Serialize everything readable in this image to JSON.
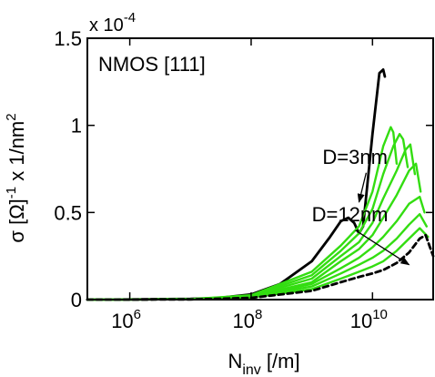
{
  "chart_data": {
    "type": "line",
    "title": "",
    "panel_label": "NMOS [111]",
    "xlabel": {
      "main": "N",
      "sub": "inv",
      "unit": " [/m]"
    },
    "ylabel": {
      "pre": "σ [Ω]",
      "sup1": "-1",
      "mid": " x 1/nm",
      "sup2": "2"
    },
    "y_exponent": {
      "base": "x 10",
      "power": "-4"
    },
    "x_scale": "log",
    "xlim": [
      200000,
      100000000000
    ],
    "ylim": [
      0,
      1.5
    ],
    "x_ticks": [
      {
        "value": 1000000,
        "base": "10",
        "exp": "6"
      },
      {
        "value": 100000000,
        "base": "10",
        "exp": "8"
      },
      {
        "value": 10000000000,
        "base": "10",
        "exp": "10"
      }
    ],
    "y_ticks": [
      {
        "value": 0,
        "label": "0"
      },
      {
        "value": 0.5,
        "label": "0.5"
      },
      {
        "value": 1,
        "label": "1"
      },
      {
        "value": 1.5,
        "label": "1.5"
      }
    ],
    "grid": false,
    "colors": {
      "d3": "#000000",
      "intermediate": "#33dd11",
      "d12": "#000000",
      "axes": "#000000"
    },
    "series": [
      {
        "style": "solid-black",
        "x": [
          200000,
          1000000,
          10000000,
          30000000,
          100000000,
          300000000,
          1000000000,
          2000000000,
          3000000000,
          4000000000,
          5000000000,
          6000000000,
          7000000000,
          8000000000,
          10000000000,
          13000000000,
          15000000000,
          16000000000
        ],
        "y": [
          0.0,
          0.001,
          0.004,
          0.01,
          0.03,
          0.09,
          0.22,
          0.36,
          0.45,
          0.47,
          0.44,
          0.38,
          0.42,
          0.62,
          0.95,
          1.3,
          1.32,
          1.28
        ]
      },
      {
        "style": "solid-green",
        "x": [
          200000,
          1000000,
          10000000,
          100000000,
          1000000000,
          3000000000,
          6000000000,
          10000000000,
          15000000000,
          20000000000,
          22000000000,
          25000000000
        ],
        "y": [
          0.0,
          0.001,
          0.003,
          0.025,
          0.16,
          0.31,
          0.42,
          0.62,
          0.88,
          0.99,
          0.96,
          0.78
        ]
      },
      {
        "style": "solid-green",
        "x": [
          200000,
          1000000,
          10000000,
          100000000,
          1000000000,
          3000000000,
          6000000000,
          10000000000,
          15000000000,
          22000000000,
          28000000000,
          32000000000,
          38000000000
        ],
        "y": [
          0.0,
          0.001,
          0.003,
          0.022,
          0.14,
          0.28,
          0.38,
          0.52,
          0.72,
          0.88,
          0.95,
          0.92,
          0.76
        ]
      },
      {
        "style": "solid-green",
        "x": [
          200000,
          1000000,
          10000000,
          100000000,
          1000000000,
          3000000000,
          6000000000,
          10000000000,
          15000000000,
          25000000000,
          35000000000,
          42000000000,
          50000000000
        ],
        "y": [
          0.0,
          0.001,
          0.003,
          0.02,
          0.12,
          0.25,
          0.33,
          0.44,
          0.58,
          0.74,
          0.86,
          0.89,
          0.72
        ]
      },
      {
        "style": "solid-green",
        "x": [
          200000,
          1000000,
          10000000,
          100000000,
          1000000000,
          3000000000,
          6000000000,
          10000000000,
          15000000000,
          25000000000,
          40000000000,
          52000000000,
          62000000000
        ],
        "y": [
          0.0,
          0.001,
          0.002,
          0.018,
          0.1,
          0.22,
          0.29,
          0.37,
          0.47,
          0.6,
          0.74,
          0.78,
          0.62
        ]
      },
      {
        "style": "solid-green",
        "x": [
          200000,
          1000000,
          10000000,
          100000000,
          1000000000,
          3000000000,
          6000000000,
          10000000000,
          15000000000,
          25000000000,
          40000000000,
          60000000000,
          72000000000
        ],
        "y": [
          0.0,
          0.001,
          0.002,
          0.016,
          0.09,
          0.18,
          0.24,
          0.3,
          0.36,
          0.45,
          0.55,
          0.59,
          0.5
        ]
      },
      {
        "style": "solid-green",
        "x": [
          200000,
          1000000,
          10000000,
          100000000,
          1000000000,
          3000000000,
          6000000000,
          10000000000,
          15000000000,
          25000000000,
          40000000000,
          60000000000,
          78000000000
        ],
        "y": [
          0.0,
          0.001,
          0.002,
          0.014,
          0.075,
          0.15,
          0.2,
          0.24,
          0.28,
          0.35,
          0.43,
          0.49,
          0.42
        ]
      },
      {
        "style": "solid-green",
        "x": [
          200000,
          1000000,
          10000000,
          100000000,
          1000000000,
          3000000000,
          6000000000,
          10000000000,
          15000000000,
          25000000000,
          40000000000,
          60000000000,
          82000000000
        ],
        "y": [
          0.0,
          0.0,
          0.002,
          0.012,
          0.06,
          0.12,
          0.16,
          0.19,
          0.22,
          0.28,
          0.35,
          0.41,
          0.36
        ]
      },
      {
        "style": "dashed-black",
        "x": [
          200000,
          1000000,
          10000000,
          100000000,
          1000000000,
          3000000000,
          6000000000,
          10000000000,
          15000000000,
          25000000000,
          40000000000,
          60000000000,
          75000000000,
          100000000000
        ],
        "y": [
          0.0,
          0.0,
          0.001,
          0.01,
          0.05,
          0.1,
          0.13,
          0.15,
          0.17,
          0.21,
          0.27,
          0.35,
          0.37,
          0.25
        ]
      }
    ],
    "annotations": [
      {
        "text": "D=3nm",
        "x": 1500000000,
        "y": 0.78,
        "arrow_to": [
          6000000000,
          0.56
        ]
      },
      {
        "text": "D=12nm",
        "x": 1000000000,
        "y": 0.45,
        "arrow_to": [
          40000000000,
          0.2
        ]
      }
    ]
  }
}
